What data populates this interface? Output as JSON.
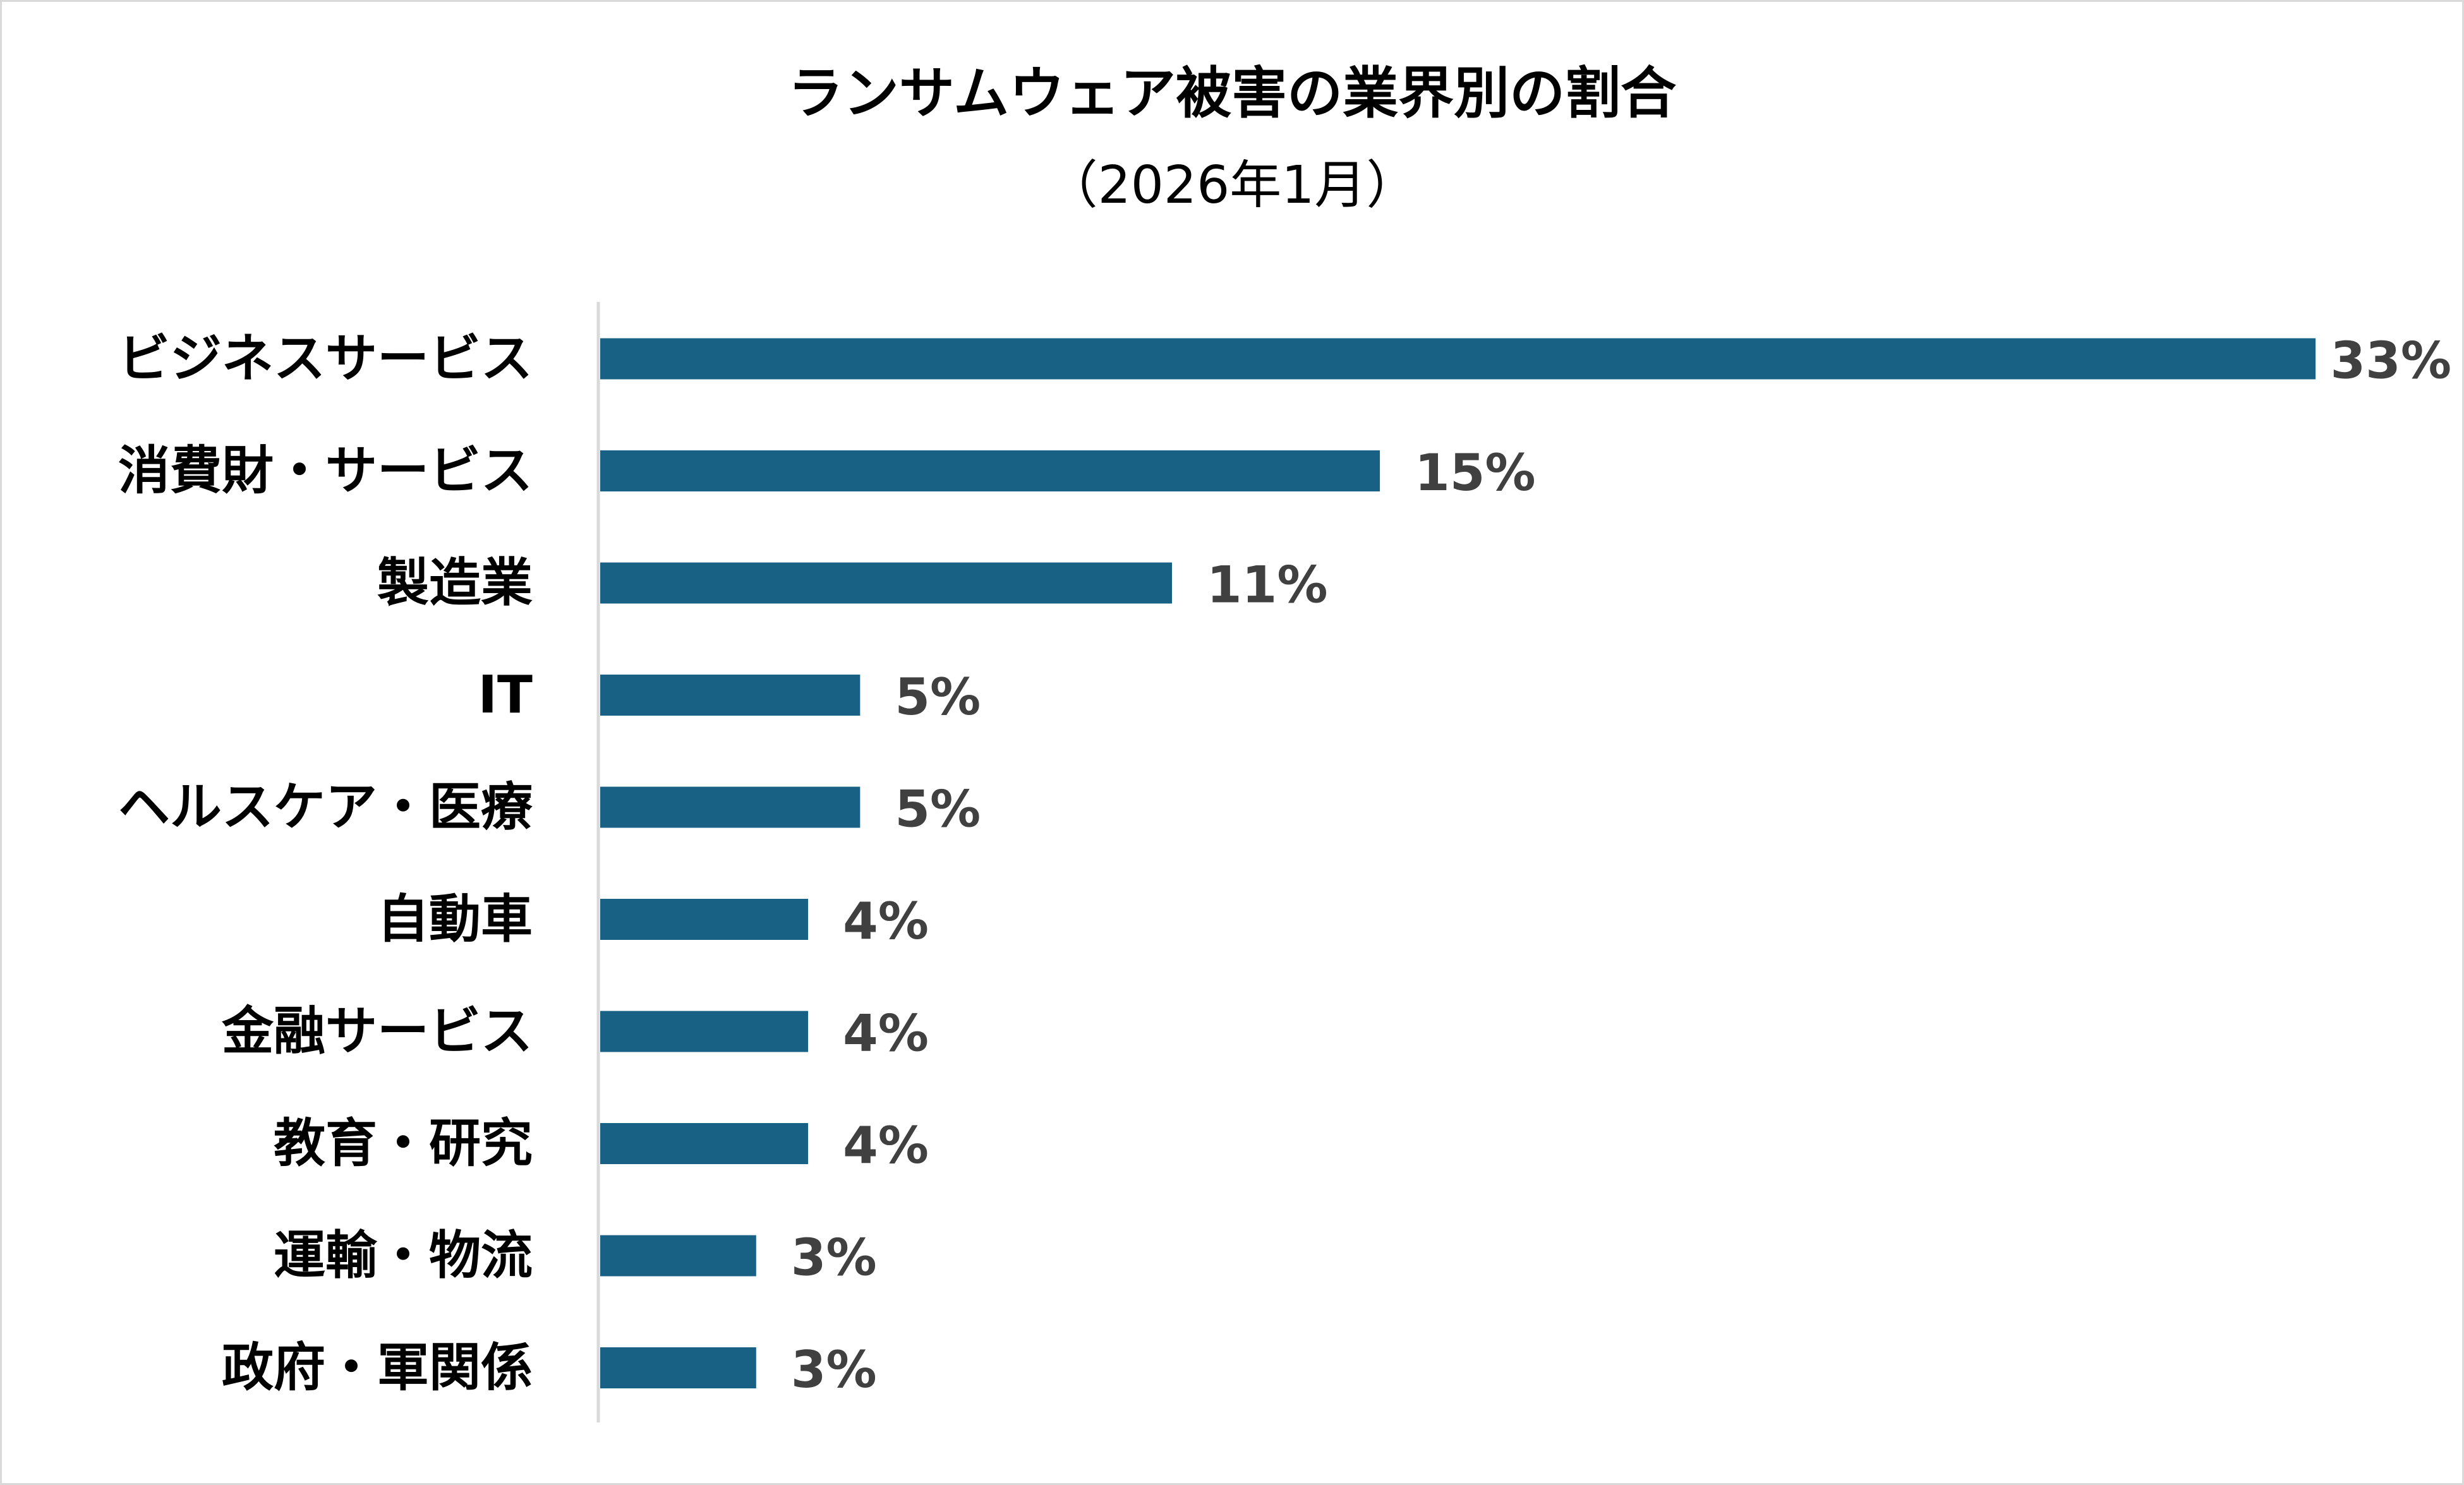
{
  "chart_data": {
    "type": "bar",
    "orientation": "horizontal",
    "title": "ランサムウェア被害の業界別の割合",
    "subtitle": "（2026年1月）",
    "categories": [
      "ビジネスサービス",
      "消費財・サービス",
      "製造業",
      "IT",
      "ヘルスケア・医療",
      "自動車",
      "金融サービス",
      "教育・研究",
      "運輸・物流",
      "政府・軍関係"
    ],
    "values": [
      33,
      15,
      11,
      5,
      5,
      4,
      4,
      4,
      3,
      3
    ],
    "value_labels": [
      "33%",
      "15%",
      "11%",
      "5%",
      "5%",
      "4%",
      "4%",
      "4%",
      "3%",
      "3%"
    ],
    "unit": "%",
    "xlim": [
      0,
      33
    ],
    "grid": false,
    "legend": "none",
    "bar_color": "#186185"
  }
}
